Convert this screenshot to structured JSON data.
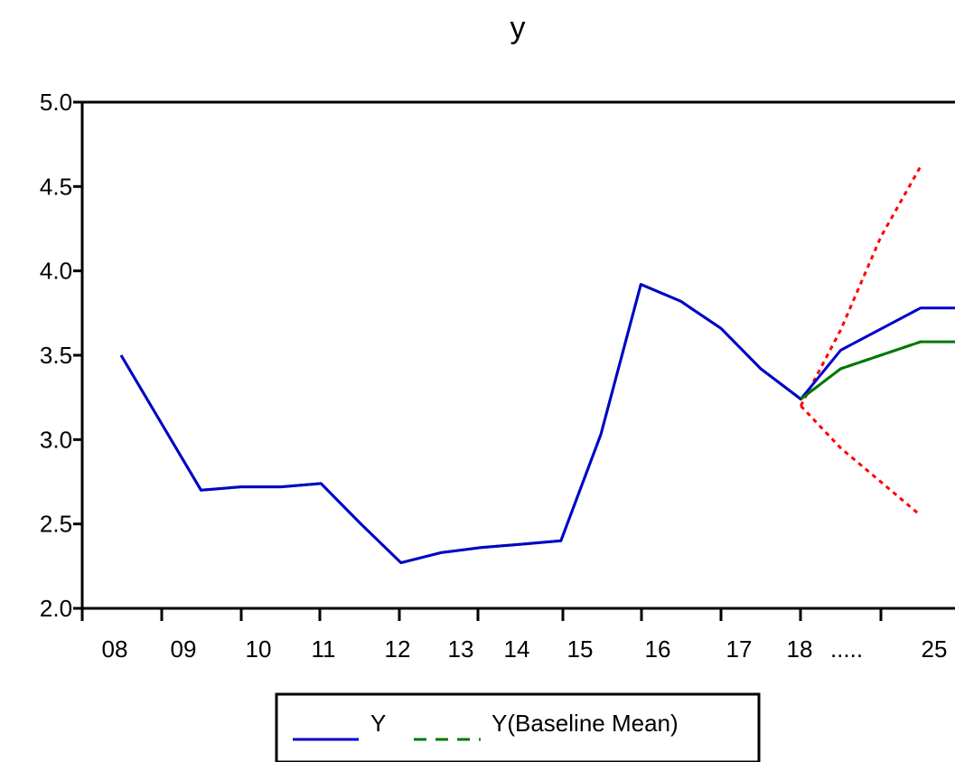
{
  "chart_data": {
    "type": "line",
    "title": "y",
    "xlabel": "",
    "ylabel": "",
    "ylim": [
      2.0,
      5.0
    ],
    "y_ticks": [
      "2.0",
      "2.5",
      "3.0",
      "3.5",
      "4.0",
      "4.5",
      "5.0"
    ],
    "x_tick_labels": [
      "08",
      "09",
      "10",
      "11",
      "12",
      "13",
      "14",
      "15",
      "16",
      "17",
      "18",
      ".....",
      "25"
    ],
    "grid": false,
    "legend": "bottom",
    "series": [
      {
        "name": "Y",
        "color": "#0000cc",
        "style": "solid",
        "x": [
          0,
          1,
          1.5,
          2,
          2.5,
          3,
          3.5,
          4,
          4.5,
          5,
          5.5,
          6,
          6.5,
          7,
          7.5,
          8,
          8.5,
          9,
          10,
          11
        ],
        "values": [
          3.5,
          2.7,
          2.72,
          2.72,
          2.74,
          2.5,
          2.27,
          2.33,
          2.36,
          2.38,
          2.4,
          3.03,
          3.92,
          3.82,
          3.66,
          3.42,
          3.24,
          3.53,
          3.78,
          3.78
        ]
      },
      {
        "name": "Y(Baseline Mean)",
        "color": "#007700",
        "style": "dashed",
        "x": [
          0,
          1,
          1.5,
          2,
          2.5,
          3,
          3.5,
          4,
          4.5,
          5,
          5.5,
          6,
          6.5,
          7,
          7.5,
          8,
          8.5,
          9,
          10,
          11
        ],
        "values": [
          3.5,
          2.7,
          2.72,
          2.72,
          2.74,
          2.5,
          2.27,
          2.33,
          2.36,
          2.38,
          2.4,
          3.03,
          3.92,
          3.82,
          3.66,
          3.42,
          3.24,
          3.42,
          3.58,
          3.58
        ]
      },
      {
        "name": "",
        "color": "#ff0000",
        "style": "dotted",
        "x": [
          8.5,
          9,
          9.5,
          10
        ],
        "values": [
          3.2,
          3.65,
          4.2,
          4.62
        ]
      },
      {
        "name": "",
        "color": "#ff0000",
        "style": "dotted",
        "x": [
          8.5,
          9,
          9.5,
          10
        ],
        "values": [
          3.2,
          2.95,
          2.75,
          2.55
        ]
      }
    ]
  }
}
